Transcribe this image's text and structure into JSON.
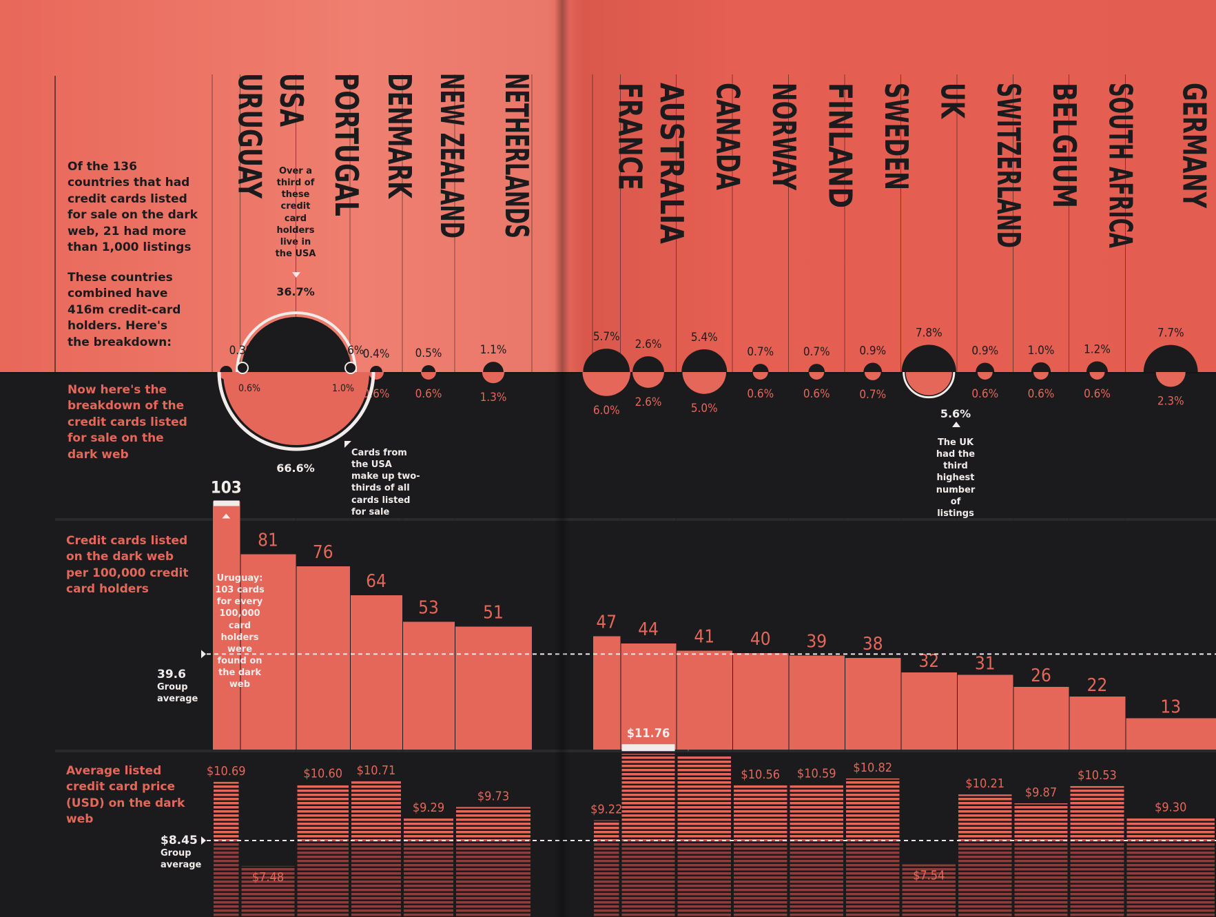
{
  "intro": {
    "top_text": "Of the 136 countries that had credit cards listed for sale on the dark web, 21 had more than 1,000 listings",
    "breakdown_text": "These countries combined have 416m credit-card holders. Here's the breakdown:",
    "dark_text": "Now here's the breakdown of the credit cards listed for sale on the dark web"
  },
  "annotations": {
    "usa_holders": "Over a third of these credit card holders live in the USA",
    "usa_holders_value": "36.7%",
    "usa_cards": "Cards from the USA make up two-thirds of all cards listed for sale",
    "usa_cards_value": "66.6%",
    "uk_cards": "The UK had the third highest number of listings",
    "uk_cards_value": "5.6%",
    "uruguay_per": "Uruguay: 103 cards for every 100,000 card holders were found on the dark web"
  },
  "sections": {
    "per100k_title": "Credit cards listed on the dark web per 100,000 credit card holders",
    "price_title": "Average listed credit card price (USD) on the dark web"
  },
  "averages": {
    "per100k_value": "39.6",
    "per100k_label": "Group average",
    "price_value": "$8.45",
    "price_label": "Group average"
  },
  "colors": {
    "accent_red": "#e4675a",
    "dark": "#1b1b1d",
    "white": "#f1ecea"
  },
  "chart_data": {
    "type": "bar",
    "categories": [
      "URUGUAY",
      "USA",
      "PORTUGAL",
      "DENMARK",
      "NEW ZEALAND",
      "NETHERLANDS",
      "FRANCE",
      "AUSTRALIA",
      "CANADA",
      "NORWAY",
      "FINLAND",
      "SWEDEN",
      "UK",
      "SWITZERLAND",
      "BELGIUM",
      "SOUTH AFRICA",
      "GERMANY"
    ],
    "series": [
      {
        "name": "share of credit card holders (%)",
        "values": [
          0.3,
          36.7,
          0.6,
          0.4,
          0.5,
          1.1,
          5.7,
          2.6,
          5.4,
          0.7,
          0.7,
          0.9,
          7.8,
          0.9,
          1.0,
          1.2,
          7.7
        ],
        "labels": [
          "0.3%",
          "36.7%",
          "0.6%",
          "0.4%",
          "0.5%",
          "1.1%",
          "5.7%",
          "2.6%",
          "5.4%",
          "0.7%",
          "0.7%",
          "0.9%",
          "7.8%",
          "0.9%",
          "1.0%",
          "1.2%",
          "7.7%"
        ]
      },
      {
        "name": "share of cards listed for sale (%)",
        "values": [
          0.6,
          66.6,
          1.0,
          0.6,
          0.6,
          1.3,
          6.0,
          2.6,
          5.0,
          0.6,
          0.6,
          0.7,
          5.6,
          0.6,
          0.6,
          0.6,
          2.3
        ],
        "labels": [
          "0.6%",
          "66.6%",
          "1.0%",
          "0.6%",
          "0.6%",
          "1.3%",
          "6.0%",
          "2.6%",
          "5.0%",
          "0.6%",
          "0.6%",
          "0.7%",
          "5.6%",
          "0.6%",
          "0.6%",
          "0.6%",
          "2.3%"
        ]
      },
      {
        "name": "cards listed per 100,000 holders",
        "values": [
          103,
          81,
          76,
          64,
          53,
          51,
          47,
          44,
          41,
          40,
          39,
          38,
          32,
          31,
          26,
          22,
          13
        ],
        "labels": [
          "103",
          "81",
          "76",
          "64",
          "53",
          "51",
          "47",
          "44",
          "41",
          "40",
          "39",
          "38",
          "32",
          "31",
          "26",
          "22",
          "13"
        ]
      },
      {
        "name": "average listed card price (USD)",
        "values": [
          10.69,
          7.48,
          10.6,
          10.71,
          9.29,
          9.73,
          9.22,
          11.76,
          11.68,
          10.56,
          10.59,
          10.82,
          7.54,
          10.21,
          9.87,
          10.53,
          9.3
        ],
        "labels": [
          "$10.69",
          "$7.48",
          "$10.60",
          "$10.71",
          "$9.29",
          "$9.73",
          "$9.22",
          "$11.76",
          "$11.68",
          "$10.56",
          "$10.59",
          "$10.82",
          "$7.54",
          "$10.21",
          "$9.87",
          "$10.53",
          "$9.30"
        ]
      }
    ],
    "group_average_per100k": 39.6,
    "group_average_price": 8.45
  }
}
